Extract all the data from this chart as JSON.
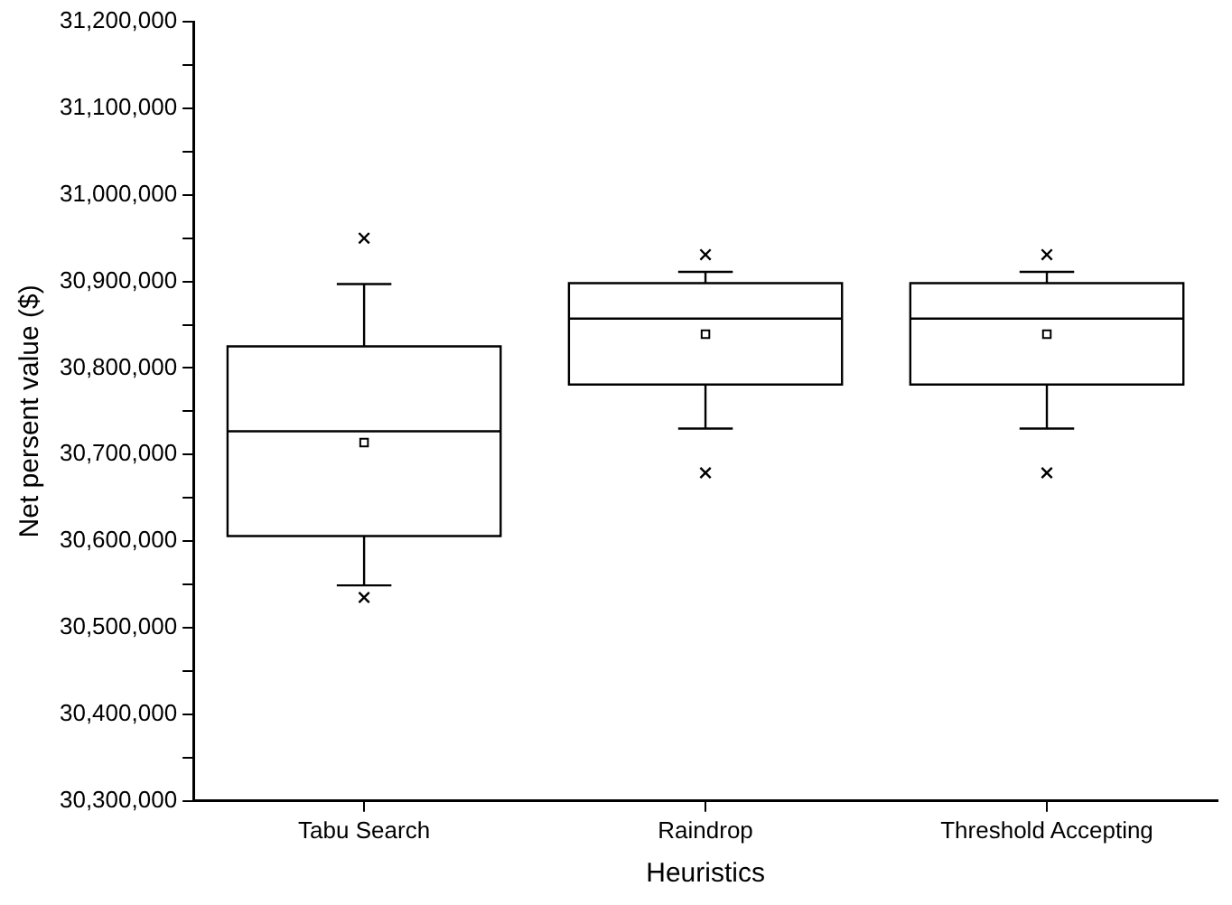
{
  "chart_data": {
    "type": "box",
    "xlabel": "Heuristics",
    "ylabel": "Net persent value ($)",
    "color": "#000000",
    "categories": [
      "Tabu Search",
      "Raindrop",
      "Threshold Accepting"
    ],
    "boxes": [
      {
        "low": 30549000,
        "q1": 30606000,
        "median": 30727000,
        "q3": 30825000,
        "high": 30897000,
        "mean": 30714000,
        "outliers": [
          30950000,
          30535000
        ]
      },
      {
        "low": 30730000,
        "q1": 30781000,
        "median": 30857000,
        "q3": 30898000,
        "high": 30911000,
        "mean": 30839000,
        "outliers": [
          30931000,
          30679000
        ]
      },
      {
        "low": 30730000,
        "q1": 30781000,
        "median": 30857000,
        "q3": 30898000,
        "high": 30911000,
        "mean": 30839000,
        "outliers": [
          30931000,
          30679000
        ]
      }
    ],
    "ylim": [
      30300000,
      31200000
    ],
    "yticks": [
      {
        "value": 30300000,
        "label": "30,300,000"
      },
      {
        "value": 30350000,
        "label": null
      },
      {
        "value": 30400000,
        "label": "30,400,000"
      },
      {
        "value": 30450000,
        "label": null
      },
      {
        "value": 30500000,
        "label": "30,500,000"
      },
      {
        "value": 30550000,
        "label": null
      },
      {
        "value": 30600000,
        "label": "30,600,000"
      },
      {
        "value": 30650000,
        "label": null
      },
      {
        "value": 30700000,
        "label": "30,700,000"
      },
      {
        "value": 30750000,
        "label": null
      },
      {
        "value": 30800000,
        "label": "30,800,000"
      },
      {
        "value": 30850000,
        "label": null
      },
      {
        "value": 30900000,
        "label": "30,900,000"
      },
      {
        "value": 30950000,
        "label": null
      },
      {
        "value": 31000000,
        "label": "31,000,000"
      },
      {
        "value": 31050000,
        "label": null
      },
      {
        "value": 31100000,
        "label": "31,100,000"
      },
      {
        "value": 31150000,
        "label": null
      },
      {
        "value": 31200000,
        "label": "31,200,000"
      }
    ]
  }
}
